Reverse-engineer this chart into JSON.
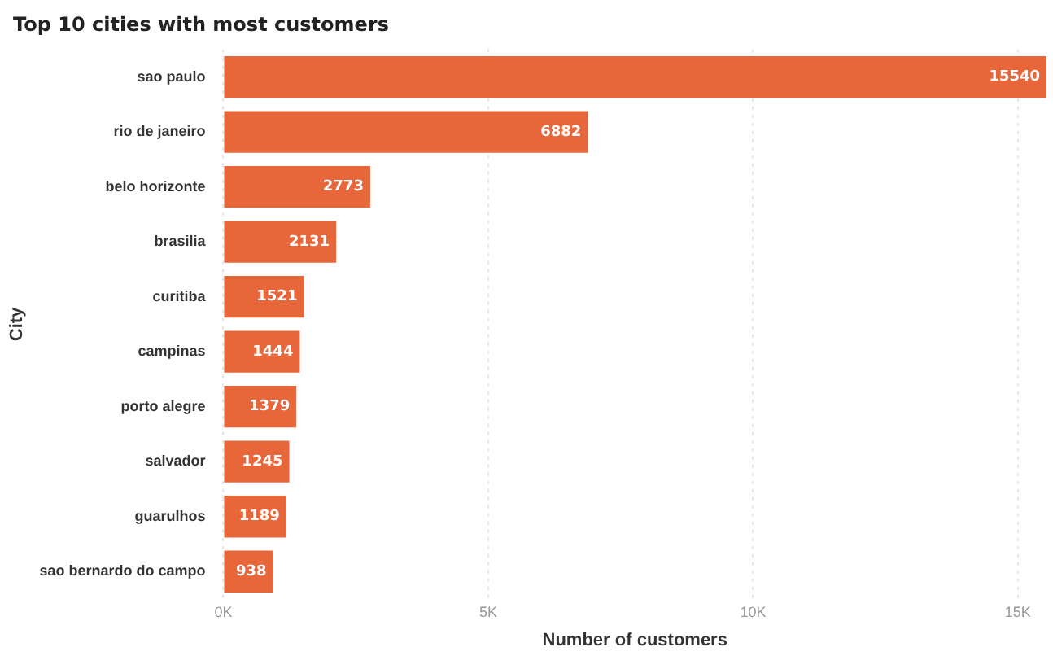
{
  "chart_data": {
    "type": "bar",
    "orientation": "horizontal",
    "title": "Top 10 cities with most customers",
    "xlabel": "Number of customers",
    "ylabel": "City",
    "categories": [
      "sao paulo",
      "rio de janeiro",
      "belo horizonte",
      "brasilia",
      "curitiba",
      "campinas",
      "porto alegre",
      "salvador",
      "guarulhos",
      "sao bernardo do campo"
    ],
    "values": [
      15540,
      6882,
      2773,
      2131,
      1521,
      1444,
      1379,
      1245,
      1189,
      938
    ],
    "color": "#e8673a",
    "xlim": [
      0,
      15540
    ],
    "xticks": [
      {
        "value": 0,
        "label": "0K"
      },
      {
        "value": 5000,
        "label": "5K"
      },
      {
        "value": 10000,
        "label": "10K"
      },
      {
        "value": 15000,
        "label": "15K"
      }
    ],
    "grid": "x",
    "legend": false,
    "data_labels": true
  }
}
